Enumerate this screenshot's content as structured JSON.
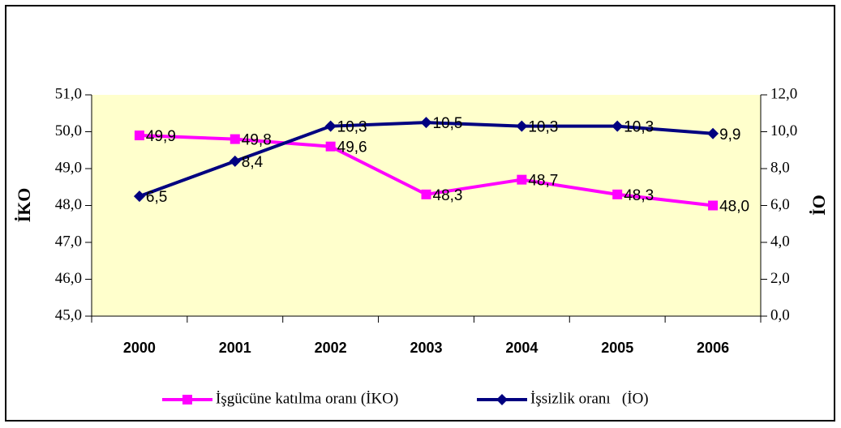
{
  "chart_data": {
    "type": "line",
    "categories": [
      "2000",
      "2001",
      "2002",
      "2003",
      "2004",
      "2005",
      "2006"
    ],
    "series": [
      {
        "name": "İşgücüne katılma oranı (İKO)",
        "color": "#ff00ff",
        "marker": "square",
        "axis": "y",
        "values": [
          49.9,
          49.8,
          49.6,
          48.3,
          48.7,
          48.3,
          48.0
        ],
        "value_labels": [
          "49,9",
          "49,8",
          "49,6",
          "48,3",
          "48,7",
          "48,3",
          "48,0"
        ]
      },
      {
        "name": "İşsizlik oranı   (İO)",
        "color": "#000080",
        "marker": "diamond",
        "axis": "y2",
        "values": [
          6.5,
          8.4,
          10.3,
          10.5,
          10.3,
          10.3,
          9.9
        ],
        "value_labels": [
          "6,5",
          "8,4",
          "10,3",
          "10,5",
          "10,3",
          "10,3",
          "9,9"
        ]
      }
    ],
    "ylabel": "İKO",
    "y2label": "İO",
    "ylim": [
      45,
      51
    ],
    "yticks": [
      {
        "value": 45,
        "label": "45,0"
      },
      {
        "value": 46,
        "label": "46,0"
      },
      {
        "value": 47,
        "label": "47,0"
      },
      {
        "value": 48,
        "label": "48,0"
      },
      {
        "value": 49,
        "label": "49,0"
      },
      {
        "value": 50,
        "label": "50,0"
      },
      {
        "value": 51,
        "label": "51,0"
      }
    ],
    "y2lim": [
      0,
      12
    ],
    "y2ticks": [
      {
        "value": 0,
        "label": "0,0"
      },
      {
        "value": 2,
        "label": "2,0"
      },
      {
        "value": 4,
        "label": "4,0"
      },
      {
        "value": 6,
        "label": "6,0"
      },
      {
        "value": 8,
        "label": "8,0"
      },
      {
        "value": 10,
        "label": "10,0"
      },
      {
        "value": 12,
        "label": "12,0"
      }
    ],
    "legend": "bottom",
    "plot_background": "#ffffcc"
  }
}
